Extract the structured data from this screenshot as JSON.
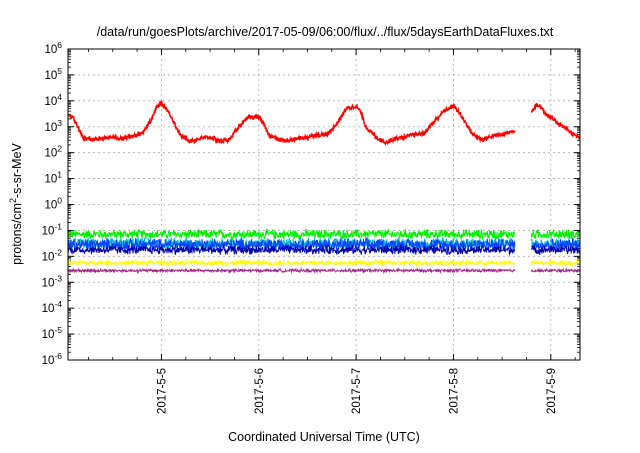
{
  "chart_data": {
    "type": "line",
    "title": "/data/run/goesPlots/archive/2017-05-09/06:00/flux/../flux/5daysEarthDataFluxes.txt",
    "xlabel": "Coordinated Universal Time (UTC)",
    "ylabel": {
      "prefix": "protons/cm",
      "sup": "2",
      "suffix": "-s-sr-MeV"
    },
    "scale_y": "log",
    "ylim_exp": [
      -6,
      6
    ],
    "ytick_exponents": [
      -6,
      -5,
      -4,
      -3,
      -2,
      -1,
      0,
      1,
      2,
      3,
      4,
      5,
      6
    ],
    "ytick_base": "10",
    "xlim_days": [
      -0.96,
      4.3
    ],
    "xticks": [
      {
        "day": 0,
        "label": "2017-5-5"
      },
      {
        "day": 1,
        "label": "2017-5-6"
      },
      {
        "day": 2,
        "label": "2017-5-7"
      },
      {
        "day": 3,
        "label": "2017-5-8"
      },
      {
        "day": 4,
        "label": "2017-5-9"
      }
    ],
    "grid": true,
    "data_gap_days": [
      3.63,
      3.8
    ],
    "series": [
      {
        "color": "#ff0000",
        "points": [
          [
            -0.96,
            3.5
          ],
          [
            -0.9,
            3.3
          ],
          [
            -0.85,
            2.9
          ],
          [
            -0.8,
            2.55
          ],
          [
            -0.7,
            2.5
          ],
          [
            -0.6,
            2.55
          ],
          [
            -0.5,
            2.6
          ],
          [
            -0.4,
            2.55
          ],
          [
            -0.3,
            2.65
          ],
          [
            -0.2,
            2.75
          ],
          [
            -0.1,
            3.3
          ],
          [
            -0.05,
            3.75
          ],
          [
            0.0,
            3.92
          ],
          [
            0.05,
            3.7
          ],
          [
            0.1,
            3.4
          ],
          [
            0.15,
            3.0
          ],
          [
            0.2,
            2.65
          ],
          [
            0.3,
            2.45
          ],
          [
            0.4,
            2.55
          ],
          [
            0.5,
            2.6
          ],
          [
            0.6,
            2.45
          ],
          [
            0.7,
            2.5
          ],
          [
            0.8,
            3.05
          ],
          [
            0.9,
            3.35
          ],
          [
            1.0,
            3.4
          ],
          [
            1.05,
            3.1
          ],
          [
            1.1,
            2.7
          ],
          [
            1.2,
            2.5
          ],
          [
            1.3,
            2.45
          ],
          [
            1.4,
            2.55
          ],
          [
            1.5,
            2.6
          ],
          [
            1.6,
            2.7
          ],
          [
            1.7,
            2.7
          ],
          [
            1.8,
            3.1
          ],
          [
            1.9,
            3.7
          ],
          [
            2.0,
            3.8
          ],
          [
            2.05,
            3.55
          ],
          [
            2.1,
            3.0
          ],
          [
            2.2,
            2.6
          ],
          [
            2.3,
            2.4
          ],
          [
            2.4,
            2.55
          ],
          [
            2.5,
            2.6
          ],
          [
            2.6,
            2.7
          ],
          [
            2.7,
            2.75
          ],
          [
            2.8,
            3.2
          ],
          [
            2.9,
            3.6
          ],
          [
            3.0,
            3.8
          ],
          [
            3.05,
            3.6
          ],
          [
            3.1,
            3.3
          ],
          [
            3.2,
            2.7
          ],
          [
            3.3,
            2.5
          ],
          [
            3.4,
            2.65
          ],
          [
            3.5,
            2.7
          ],
          [
            3.63,
            2.85
          ],
          null,
          [
            3.8,
            3.6
          ],
          [
            3.85,
            3.85
          ],
          [
            3.9,
            3.75
          ],
          [
            3.95,
            3.5
          ],
          [
            4.05,
            3.2
          ],
          [
            4.15,
            2.95
          ],
          [
            4.25,
            2.65
          ],
          [
            4.3,
            2.6
          ]
        ]
      },
      {
        "color": "#00ee00",
        "level": -1.15,
        "amp": 0.22
      },
      {
        "color": "#00bbcc",
        "level": -1.5,
        "amp": 0.25
      },
      {
        "color": "#0044ff",
        "level": -1.55,
        "amp": 0.28
      },
      {
        "color": "#0000aa",
        "level": -1.75,
        "amp": 0.2
      },
      {
        "color": "#ffff00",
        "level": -2.25,
        "amp": 0.12
      },
      {
        "color": "#aa2288",
        "level": -2.55,
        "amp": 0.07
      }
    ]
  }
}
